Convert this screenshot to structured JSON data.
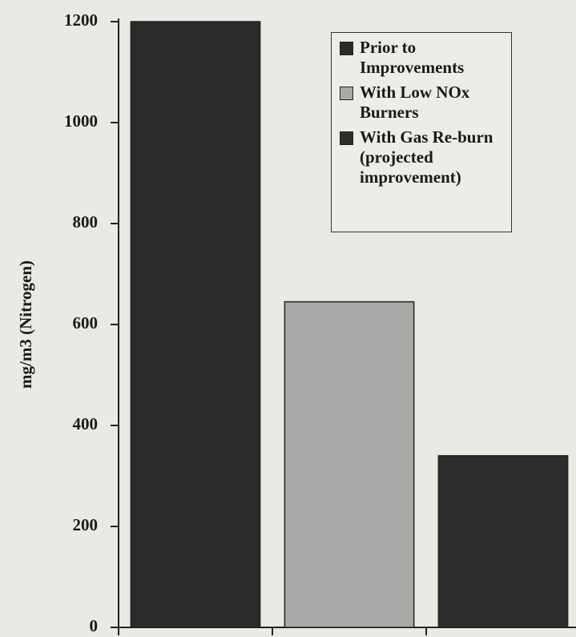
{
  "chart_data": {
    "type": "bar",
    "y_label": "mg/m3 (Nitrogen)",
    "categories": [
      null,
      null,
      null
    ],
    "values": [
      1200,
      645,
      340
    ],
    "colors": [
      "#2a2a2a",
      "#a9a9a7",
      "#2d2d2d"
    ],
    "legend": [
      "Prior to Improvements",
      "With Low NOx Burners",
      "With Gas Re-burn (projected improvement)"
    ],
    "ylim": [
      0,
      1200
    ],
    "yticks": [
      0,
      200,
      400,
      600,
      800,
      1000,
      1200
    ],
    "grid": false
  }
}
